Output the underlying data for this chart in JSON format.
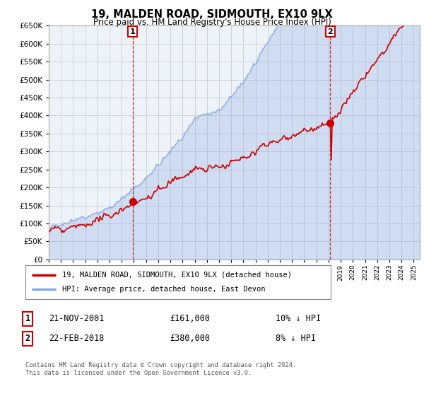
{
  "title": "19, MALDEN ROAD, SIDMOUTH, EX10 9LX",
  "subtitle": "Price paid vs. HM Land Registry's House Price Index (HPI)",
  "legend_label_red": "19, MALDEN ROAD, SIDMOUTH, EX10 9LX (detached house)",
  "legend_label_blue": "HPI: Average price, detached house, East Devon",
  "annotation1_date": "21-NOV-2001",
  "annotation1_price": "£161,000",
  "annotation1_hpi": "10% ↓ HPI",
  "annotation2_date": "22-FEB-2018",
  "annotation2_price": "£380,000",
  "annotation2_hpi": "8% ↓ HPI",
  "footer": "Contains HM Land Registry data © Crown copyright and database right 2024.\nThis data is licensed under the Open Government Licence v3.0.",
  "ylim": [
    0,
    650000
  ],
  "yticks": [
    0,
    50000,
    100000,
    150000,
    200000,
    250000,
    300000,
    350000,
    400000,
    450000,
    500000,
    550000,
    600000,
    650000
  ],
  "red_color": "#cc0000",
  "blue_color": "#88aadd",
  "blue_fill": "#dde8f5",
  "vline_color": "#cc0000",
  "grid_color": "#cccccc",
  "bg_color": "#ffffff",
  "chart_bg": "#eef3fa",
  "sale1_year": 2001.9,
  "sale1_value": 161000,
  "sale2_year": 2018.15,
  "sale2_value": 380000,
  "xstart": 1995,
  "xend": 2025.5
}
